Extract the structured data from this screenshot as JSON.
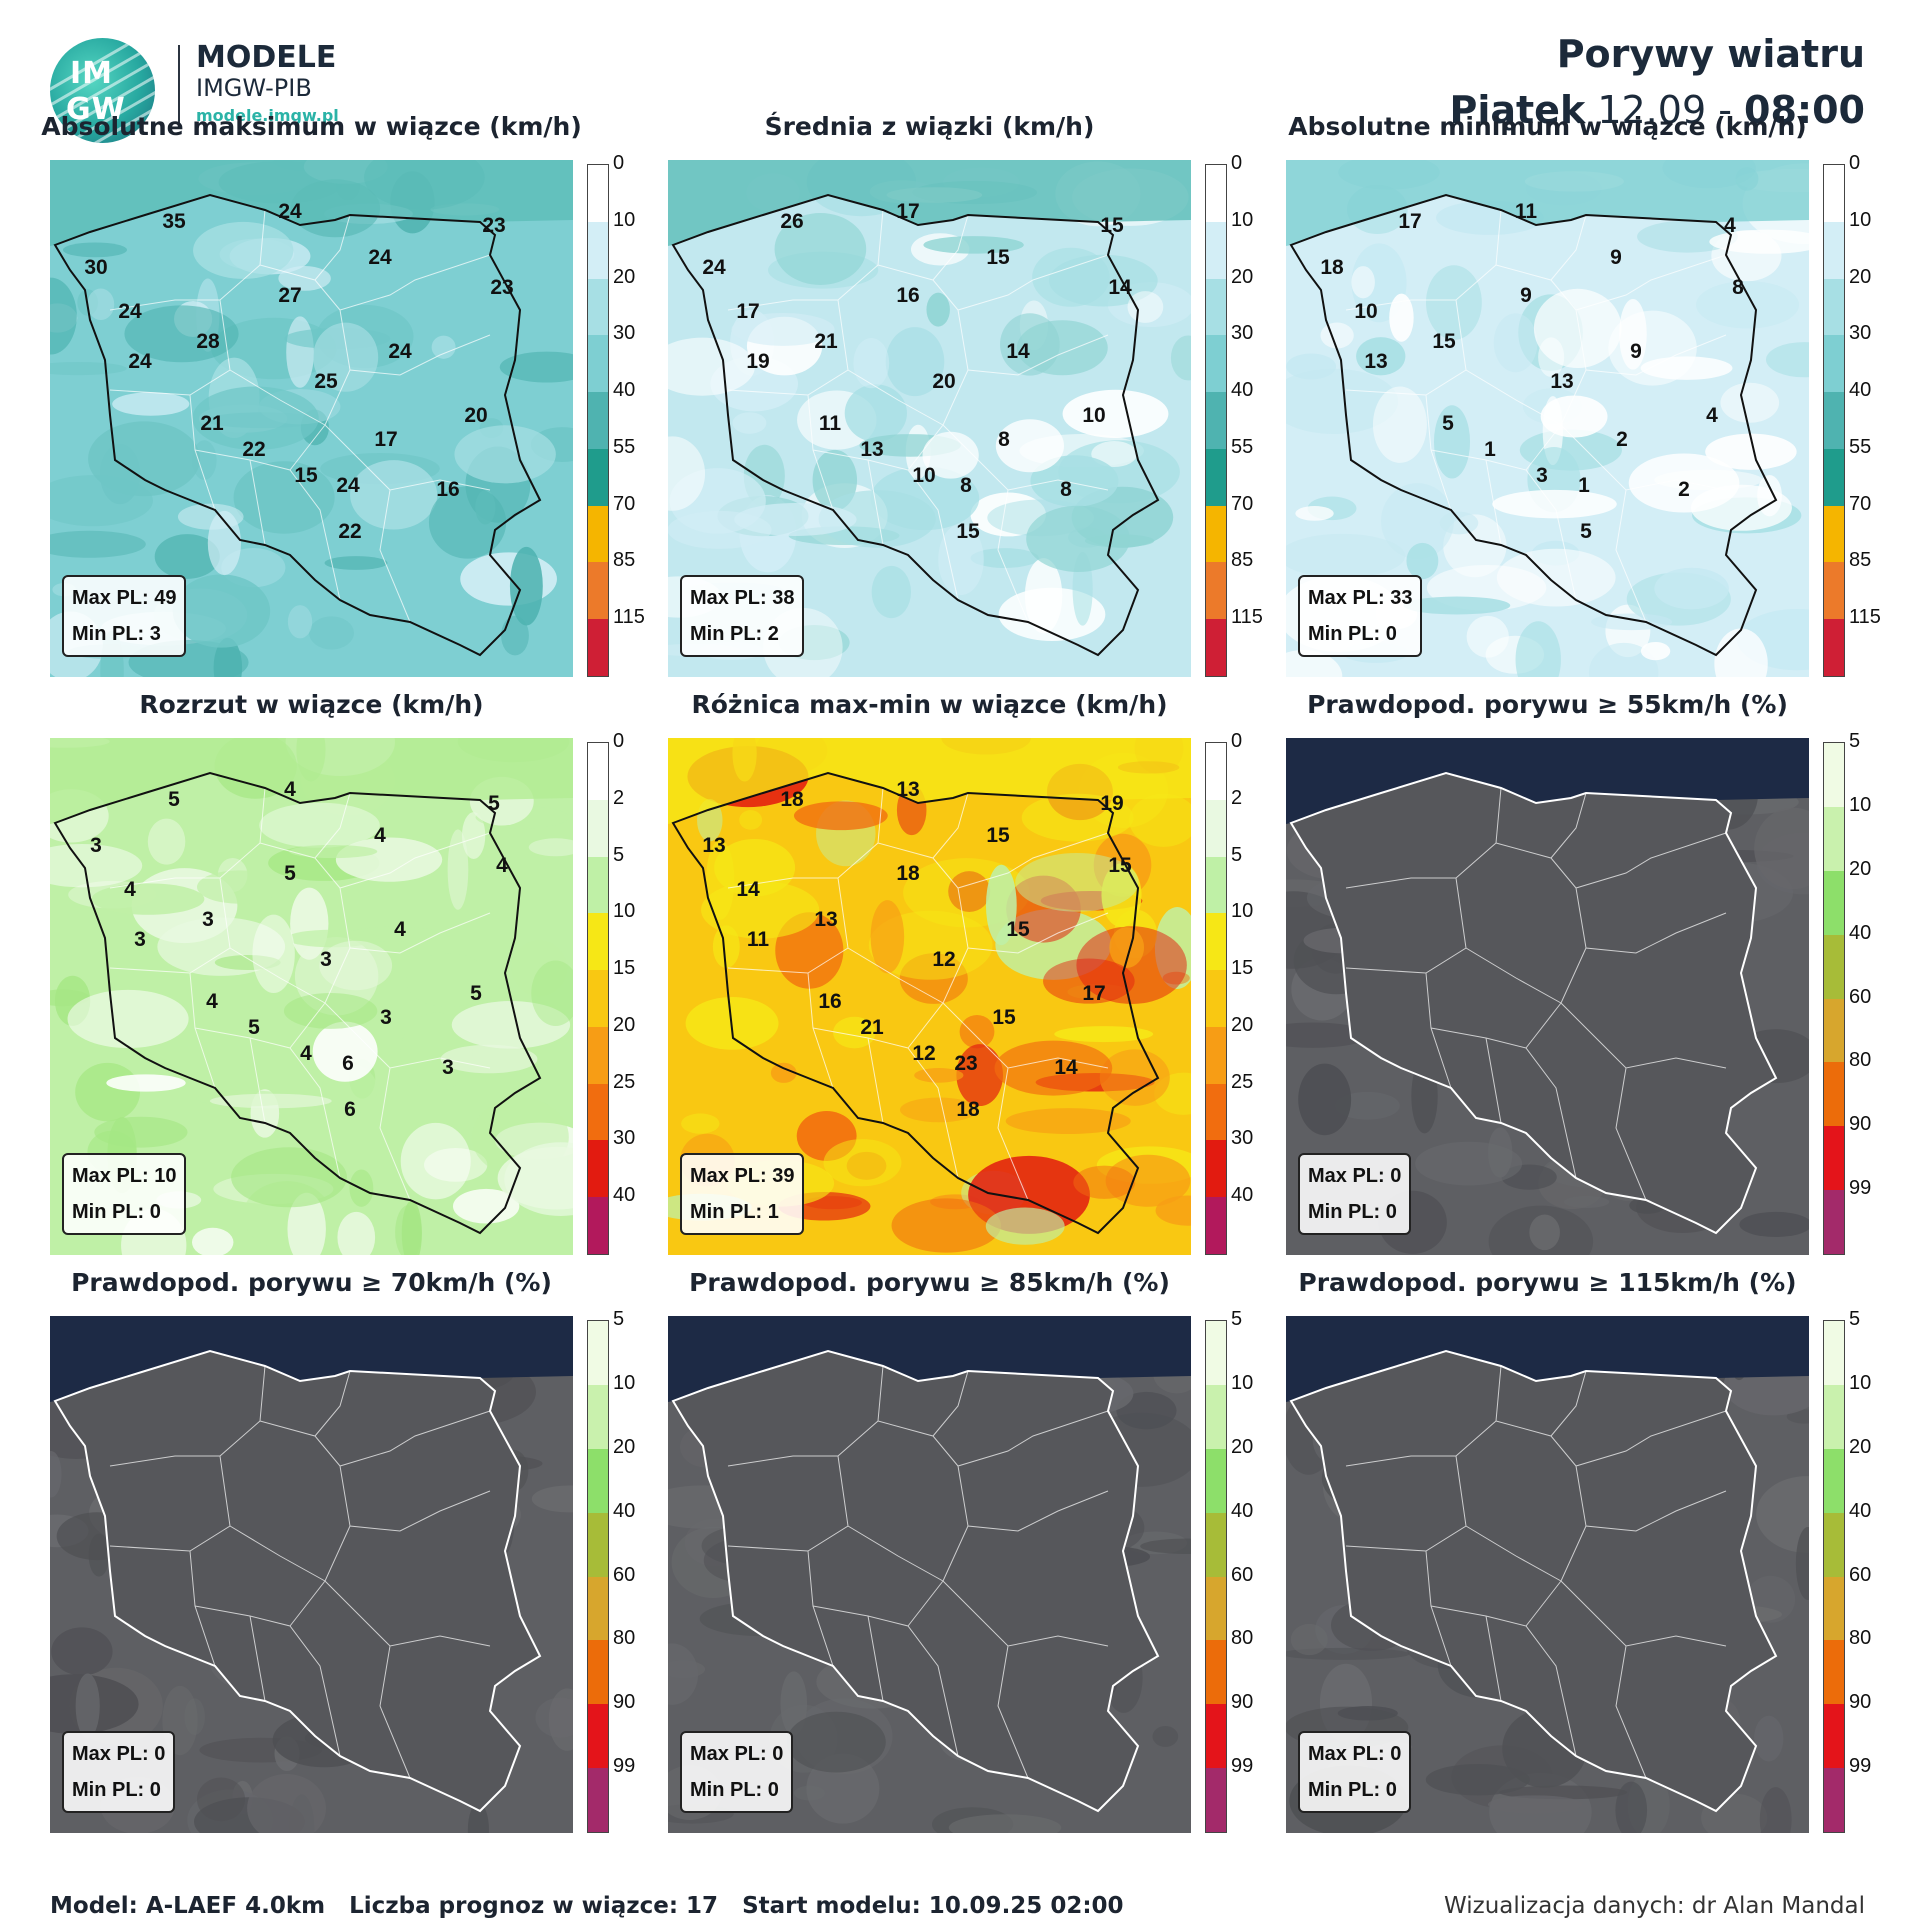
{
  "header": {
    "logo_text_top": "IM",
    "logo_text_bottom": "GW",
    "brand_title": "MODELE",
    "brand_subtitle": "IMGW-PIB",
    "brand_url": "modele.imgw.pl",
    "title": "Porywy wiatru",
    "day": "Piątek",
    "date": "12.09",
    "separator": "-",
    "time": "08:00"
  },
  "scales": {
    "speed": {
      "ticks": [
        "0",
        "10",
        "20",
        "30",
        "40",
        "55",
        "70",
        "85",
        "115"
      ],
      "colors": [
        "#ffffff",
        "#d3eef6",
        "#a7dfe4",
        "#7ecfd2",
        "#4fb3b0",
        "#1f9c8c",
        "#f5b500",
        "#ec7a2a",
        "#cf1f35"
      ]
    },
    "spread": {
      "ticks": [
        "0",
        "2",
        "5",
        "10",
        "15",
        "20",
        "25",
        "30",
        "40"
      ],
      "colors": [
        "#ffffff",
        "#e9f9e1",
        "#bff0a6",
        "#f6e716",
        "#f9c812",
        "#f79d15",
        "#f16d0f",
        "#e21b10",
        "#b2195c"
      ]
    },
    "prob": {
      "ticks": [
        "5",
        "10",
        "20",
        "40",
        "60",
        "80",
        "90",
        "99"
      ],
      "colors": [
        "#f0fbe4",
        "#c9f1ad",
        "#8ddf6a",
        "#a7bc38",
        "#d7a62d",
        "#ec6c0a",
        "#e4141a",
        "#a32a6a"
      ]
    }
  },
  "panels": [
    {
      "title": "Absolutne maksimum w wiązce (km/h)",
      "scale": "speed",
      "style": "teal",
      "max_label": "Max PL: 49",
      "min_label": "Min PL: 3",
      "values": [
        [
          "35",
          124,
          62
        ],
        [
          "24",
          240,
          52
        ],
        [
          "23",
          444,
          66
        ],
        [
          "30",
          46,
          108
        ],
        [
          "24",
          330,
          98
        ],
        [
          "23",
          452,
          128
        ],
        [
          "27",
          240,
          136
        ],
        [
          "24",
          80,
          152
        ],
        [
          "28",
          158,
          182
        ],
        [
          "24",
          350,
          192
        ],
        [
          "24",
          90,
          202
        ],
        [
          "25",
          276,
          222
        ],
        [
          "21",
          162,
          264
        ],
        [
          "20",
          426,
          256
        ],
        [
          "22",
          204,
          290
        ],
        [
          "17",
          336,
          280
        ],
        [
          "15",
          256,
          316
        ],
        [
          "24",
          298,
          326
        ],
        [
          "16",
          398,
          330
        ],
        [
          "22",
          300,
          372
        ]
      ]
    },
    {
      "title": "Średnia z wiązki (km/h)",
      "scale": "speed",
      "style": "teal-light",
      "max_label": "Max PL: 38",
      "min_label": "Min PL: 2",
      "values": [
        [
          "26",
          124,
          62
        ],
        [
          "17",
          240,
          52
        ],
        [
          "15",
          444,
          66
        ],
        [
          "24",
          46,
          108
        ],
        [
          "15",
          330,
          98
        ],
        [
          "14",
          452,
          128
        ],
        [
          "16",
          240,
          136
        ],
        [
          "17",
          80,
          152
        ],
        [
          "21",
          158,
          182
        ],
        [
          "14",
          350,
          192
        ],
        [
          "19",
          90,
          202
        ],
        [
          "20",
          276,
          222
        ],
        [
          "11",
          162,
          264
        ],
        [
          "10",
          426,
          256
        ],
        [
          "13",
          204,
          290
        ],
        [
          "8",
          336,
          280
        ],
        [
          "10",
          256,
          316
        ],
        [
          "8",
          298,
          326
        ],
        [
          "8",
          398,
          330
        ],
        [
          "15",
          300,
          372
        ]
      ]
    },
    {
      "title": "Absolutne minimum w wiązce (km/h)",
      "scale": "speed",
      "style": "light",
      "max_label": "Max PL: 33",
      "min_label": "Min PL: 0",
      "values": [
        [
          "17",
          124,
          62
        ],
        [
          "11",
          240,
          52
        ],
        [
          "4",
          444,
          66
        ],
        [
          "18",
          46,
          108
        ],
        [
          "9",
          330,
          98
        ],
        [
          "8",
          452,
          128
        ],
        [
          "9",
          240,
          136
        ],
        [
          "10",
          80,
          152
        ],
        [
          "15",
          158,
          182
        ],
        [
          "9",
          350,
          192
        ],
        [
          "13",
          90,
          202
        ],
        [
          "13",
          276,
          222
        ],
        [
          "5",
          162,
          264
        ],
        [
          "4",
          426,
          256
        ],
        [
          "1",
          204,
          290
        ],
        [
          "2",
          336,
          280
        ],
        [
          "3",
          256,
          316
        ],
        [
          "1",
          298,
          326
        ],
        [
          "2",
          398,
          330
        ],
        [
          "5",
          300,
          372
        ]
      ]
    },
    {
      "title": "Rozrzut w wiązce (km/h)",
      "scale": "spread",
      "style": "green-white",
      "max_label": "Max PL: 10",
      "min_label": "Min PL: 0",
      "values": [
        [
          "5",
          124,
          62
        ],
        [
          "4",
          240,
          52
        ],
        [
          "5",
          444,
          66
        ],
        [
          "3",
          46,
          108
        ],
        [
          "4",
          330,
          98
        ],
        [
          "4",
          452,
          128
        ],
        [
          "5",
          240,
          136
        ],
        [
          "4",
          80,
          152
        ],
        [
          "3",
          158,
          182
        ],
        [
          "4",
          350,
          192
        ],
        [
          "3",
          90,
          202
        ],
        [
          "3",
          276,
          222
        ],
        [
          "4",
          162,
          264
        ],
        [
          "5",
          426,
          256
        ],
        [
          "5",
          204,
          290
        ],
        [
          "3",
          336,
          280
        ],
        [
          "4",
          256,
          316
        ],
        [
          "6",
          298,
          326
        ],
        [
          "3",
          398,
          330
        ],
        [
          "6",
          300,
          372
        ]
      ]
    },
    {
      "title": "Różnica max-min w wiązce (km/h)",
      "scale": "spread",
      "style": "heat",
      "max_label": "Max PL: 39",
      "min_label": "Min PL: 1",
      "values": [
        [
          "18",
          124,
          62
        ],
        [
          "13",
          240,
          52
        ],
        [
          "19",
          444,
          66
        ],
        [
          "13",
          46,
          108
        ],
        [
          "15",
          330,
          98
        ],
        [
          "15",
          452,
          128
        ],
        [
          "18",
          240,
          136
        ],
        [
          "14",
          80,
          152
        ],
        [
          "13",
          158,
          182
        ],
        [
          "15",
          350,
          192
        ],
        [
          "11",
          90,
          202
        ],
        [
          "12",
          276,
          222
        ],
        [
          "16",
          162,
          264
        ],
        [
          "17",
          426,
          256
        ],
        [
          "21",
          204,
          290
        ],
        [
          "15",
          336,
          280
        ],
        [
          "12",
          256,
          316
        ],
        [
          "23",
          298,
          326
        ],
        [
          "14",
          398,
          330
        ],
        [
          "18",
          300,
          372
        ]
      ]
    },
    {
      "title": "Prawdopod. porywu ≥ 55km/h (%)",
      "scale": "prob",
      "style": "dark",
      "max_label": "Max PL: 0",
      "min_label": "Min PL: 0",
      "values": []
    },
    {
      "title": "Prawdopod. porywu ≥ 70km/h (%)",
      "scale": "prob",
      "style": "dark",
      "max_label": "Max PL: 0",
      "min_label": "Min PL: 0",
      "values": []
    },
    {
      "title": "Prawdopod. porywu ≥ 85km/h (%)",
      "scale": "prob",
      "style": "dark",
      "max_label": "Max PL: 0",
      "min_label": "Min PL: 0",
      "values": []
    },
    {
      "title": "Prawdopod. porywu ≥ 115km/h (%)",
      "scale": "prob",
      "style": "dark",
      "max_label": "Max PL: 0",
      "min_label": "Min PL: 0",
      "values": []
    }
  ],
  "footer": {
    "model": "Model: A-LAEF 4.0km",
    "ensemble": "Liczba prognoz w wiązce: 17",
    "start": "Start modelu: 10.09.25  02:00",
    "credit": "Wizualizacja danych: dr Alan Mandal"
  }
}
